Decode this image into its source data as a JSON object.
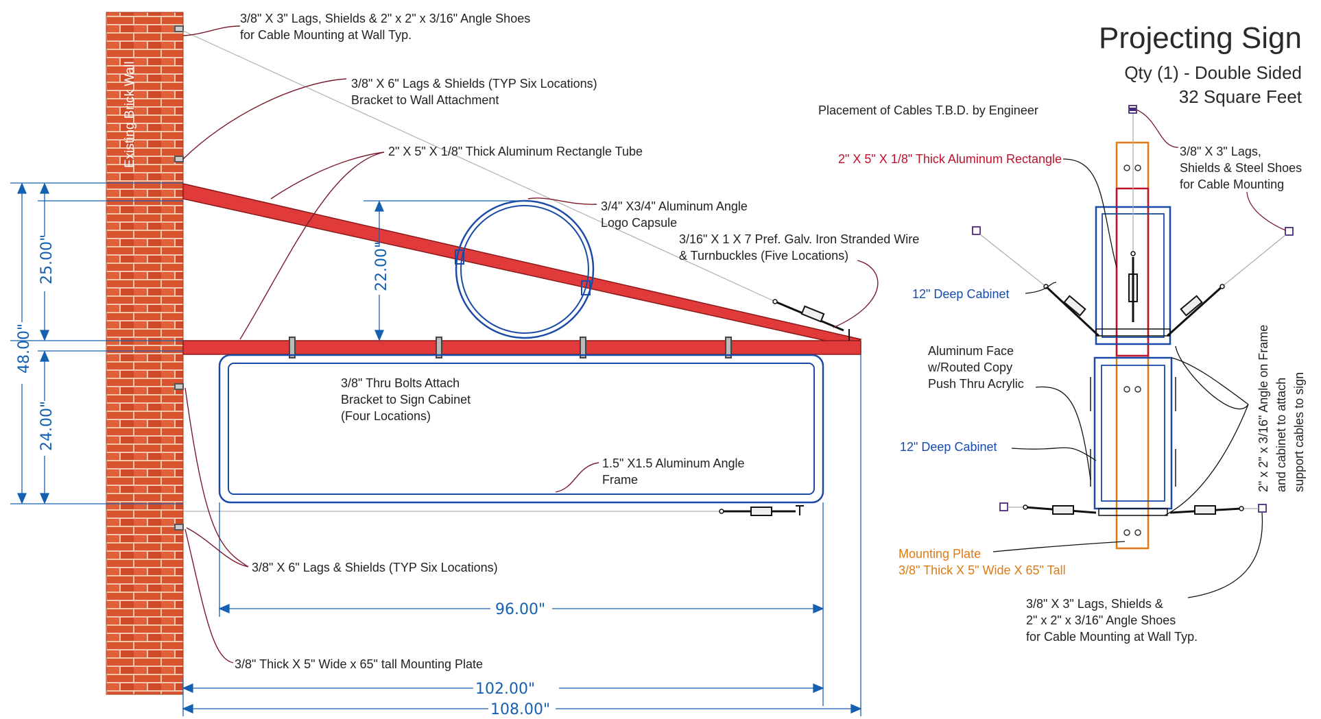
{
  "title": "Projecting Sign",
  "subtitle_line1": "Qty (1) - Double Sided",
  "subtitle_line2": "32 Square Feet",
  "wall_label": "Existing Brick Wall",
  "colors": {
    "brick": "#d9532e",
    "mortar": "#f0c8b0",
    "tube_red": "#e03a3a",
    "dim_blue": "#1560b0",
    "cabinet_blue": "#1a4aa8",
    "plate_orange": "#e07a10",
    "rect_red": "#c0102a",
    "leader": "#7a1a2a"
  },
  "side_view": {
    "callouts": {
      "c1_line1": "3/8\" X 3\" Lags, Shields & 2\" x 2\" x 3/16\" Angle Shoes",
      "c1_line2": "for Cable Mounting at Wall Typ.",
      "c2_line1": "3/8\" X 6\" Lags & Shields (TYP Six Locations)",
      "c2_line2": "Bracket to Wall Attachment",
      "c3": "2\" X 5\"  X 1/8\" Thick Aluminum Rectangle Tube",
      "c4_line1": "3/4\" X3/4\" Aluminum Angle",
      "c4_line2": "Logo Capsule",
      "c5_line1": "3/16\" X 1 X 7 Pref. Galv. Iron Stranded Wire",
      "c5_line2": "& Turnbuckles (Five Locations)",
      "c6_line1": "3/8\" Thru Bolts Attach",
      "c6_line2": "Bracket to Sign Cabinet",
      "c6_line3": "(Four Locations)",
      "c7_line1": "1.5\" X1.5 Aluminum Angle",
      "c7_line2": "Frame",
      "c8": "3/8\" X 6\" Lags & Shields (TYP Six Locations)",
      "c9": "3/8\" Thick X 5\" Wide x 65\" tall Mounting Plate"
    },
    "dimensions": {
      "d25": "25.00\"",
      "d22": "22.00\"",
      "d48": "48.00\"",
      "d24": "24.00\"",
      "d96": "96.00\"",
      "d102": "102.00\"",
      "d108": "108.00\""
    }
  },
  "end_view": {
    "cables_note": "Placement of Cables T.B.D. by Engineer",
    "rect_label": "2\" X 5\"  X 1/8\" Thick Aluminum Rectangle",
    "shoes_top_line1": "3/8\" X 3\" Lags,",
    "shoes_top_line2": "Shields & Steel Shoes",
    "shoes_top_line3": "for Cable Mounting",
    "cabinet_top": "12\" Deep Cabinet",
    "face_line1": "Aluminum Face",
    "face_line2": "w/Routed Copy",
    "face_line3": "Push Thru Acrylic",
    "cabinet_bottom": "12\" Deep Cabinet",
    "plate_line1": "Mounting Plate",
    "plate_line2": "3/8\" Thick X 5\" Wide X 65\" Tall",
    "shoes_bottom_line1": "3/8\" X 3\" Lags, Shields &",
    "shoes_bottom_line2": "2\" x 2\" x 3/16\" Angle Shoes",
    "shoes_bottom_line3": "for Cable Mounting at Wall Typ.",
    "vertical_line1": "2\" x 2\" x 3/16\" Angle on Frame",
    "vertical_line2": "and cabinet to attach",
    "vertical_line3": "support cables to sign"
  }
}
